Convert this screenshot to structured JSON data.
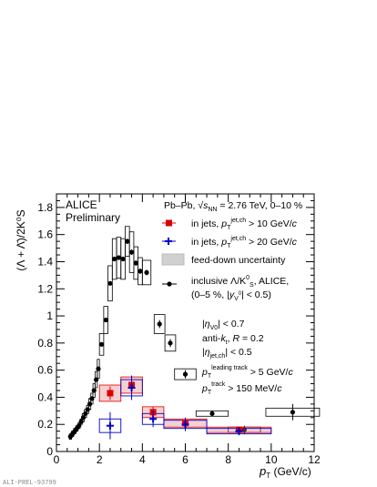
{
  "chart_data": {
    "type": "scatter",
    "xlabel": {
      "main": "p",
      "sub": "T",
      "unit": "(GeV/c)"
    },
    "ylabel": "(Λ + Λ̄)/2K⁰S",
    "xlim": [
      0,
      12
    ],
    "ylim": [
      0,
      1.9
    ],
    "x_ticks": [
      0,
      2,
      4,
      6,
      8,
      10,
      12
    ],
    "y_ticks": [
      0,
      0.2,
      0.4,
      0.6,
      0.8,
      1,
      1.2,
      1.4,
      1.6,
      1.8
    ],
    "grid": false,
    "legend_position": "top-right",
    "experiment": "ALICE",
    "status": "Preliminary",
    "system_label": "Pb–Pb, √sNN = 2.76 TeV, 0–10 %",
    "cuts": [
      "|ηV0| < 0.7",
      "anti-kt, R = 0.2",
      "|ηjet,ch| < 0.5",
      "pT leading track > 5 GeV/c",
      "pT track > 150 MeV/c"
    ],
    "figure_id": "ALI-PREL-93799",
    "series": [
      {
        "name": "in jets, pT jet,ch > 10 GeV/c",
        "color": "#dd0000",
        "marker": "square",
        "x": [
          2.5,
          3.5,
          4.5,
          6.0,
          8.5
        ],
        "y": [
          0.43,
          0.49,
          0.29,
          0.21,
          0.16
        ],
        "yerr": [
          0.05,
          0.05,
          0.04,
          0.03,
          0.02
        ],
        "xerr": [
          0.5,
          0.5,
          0.5,
          1.0,
          1.5
        ],
        "sys": [
          0.06,
          0.06,
          0.04,
          0.03,
          0.02
        ]
      },
      {
        "name": "in jets, pT jet,ch > 20 GeV/c",
        "color": "#0000cc",
        "marker": "cross",
        "x": [
          2.5,
          3.5,
          4.5,
          6.0,
          8.5
        ],
        "y": [
          0.19,
          0.47,
          0.24,
          0.2,
          0.15
        ],
        "yerr": [
          0.1,
          0.09,
          0.06,
          0.05,
          0.03
        ],
        "xerr": [
          0.5,
          0.5,
          0.5,
          1.0,
          1.5
        ],
        "sys": [
          0.05,
          0.06,
          0.04,
          0.03,
          0.02
        ]
      },
      {
        "name": "inclusive Λ/K0S, ALICE, (0–5 %, |yV0| < 0.5)",
        "color": "#000000",
        "marker": "circle",
        "x": [
          0.65,
          0.75,
          0.85,
          0.95,
          1.05,
          1.15,
          1.25,
          1.35,
          1.45,
          1.55,
          1.65,
          1.75,
          1.85,
          1.95,
          2.1,
          2.3,
          2.5,
          2.7,
          2.9,
          3.1,
          3.3,
          3.5,
          3.7,
          3.9,
          4.2,
          4.8,
          5.3,
          6.0,
          7.25,
          8.75,
          11.0
        ],
        "y": [
          0.11,
          0.13,
          0.15,
          0.17,
          0.19,
          0.22,
          0.25,
          0.28,
          0.31,
          0.35,
          0.39,
          0.45,
          0.53,
          0.61,
          0.79,
          0.97,
          1.24,
          1.42,
          1.43,
          1.42,
          1.55,
          1.47,
          1.39,
          1.33,
          1.32,
          0.94,
          0.8,
          0.57,
          0.28,
          0.16,
          0.29
        ],
        "sys": [
          0.02,
          0.02,
          0.02,
          0.02,
          0.02,
          0.02,
          0.03,
          0.03,
          0.03,
          0.04,
          0.04,
          0.05,
          0.06,
          0.07,
          0.08,
          0.1,
          0.13,
          0.15,
          0.15,
          0.15,
          0.11,
          0.15,
          0.12,
          0.1,
          0.09,
          0.07,
          0.06,
          0.04,
          0.02,
          0.02,
          0.03
        ],
        "sysw": [
          0.05,
          0.05,
          0.05,
          0.05,
          0.05,
          0.05,
          0.05,
          0.05,
          0.05,
          0.05,
          0.05,
          0.05,
          0.05,
          0.05,
          0.1,
          0.1,
          0.1,
          0.1,
          0.1,
          0.1,
          0.1,
          0.1,
          0.1,
          0.1,
          0.2,
          0.25,
          0.25,
          0.5,
          0.75,
          0.75,
          1.25
        ],
        "yerr": [
          0.005,
          0.005,
          0.005,
          0.005,
          0.005,
          0.005,
          0.005,
          0.005,
          0.005,
          0.005,
          0.005,
          0.005,
          0.01,
          0.01,
          0.01,
          0.01,
          0.01,
          0.01,
          0.01,
          0.01,
          0.02,
          0.02,
          0.02,
          0.02,
          0.02,
          0.03,
          0.03,
          0.03,
          0.02,
          0.03,
          0.06
        ]
      }
    ],
    "feed_down_legend": "feed-down uncertainty"
  }
}
